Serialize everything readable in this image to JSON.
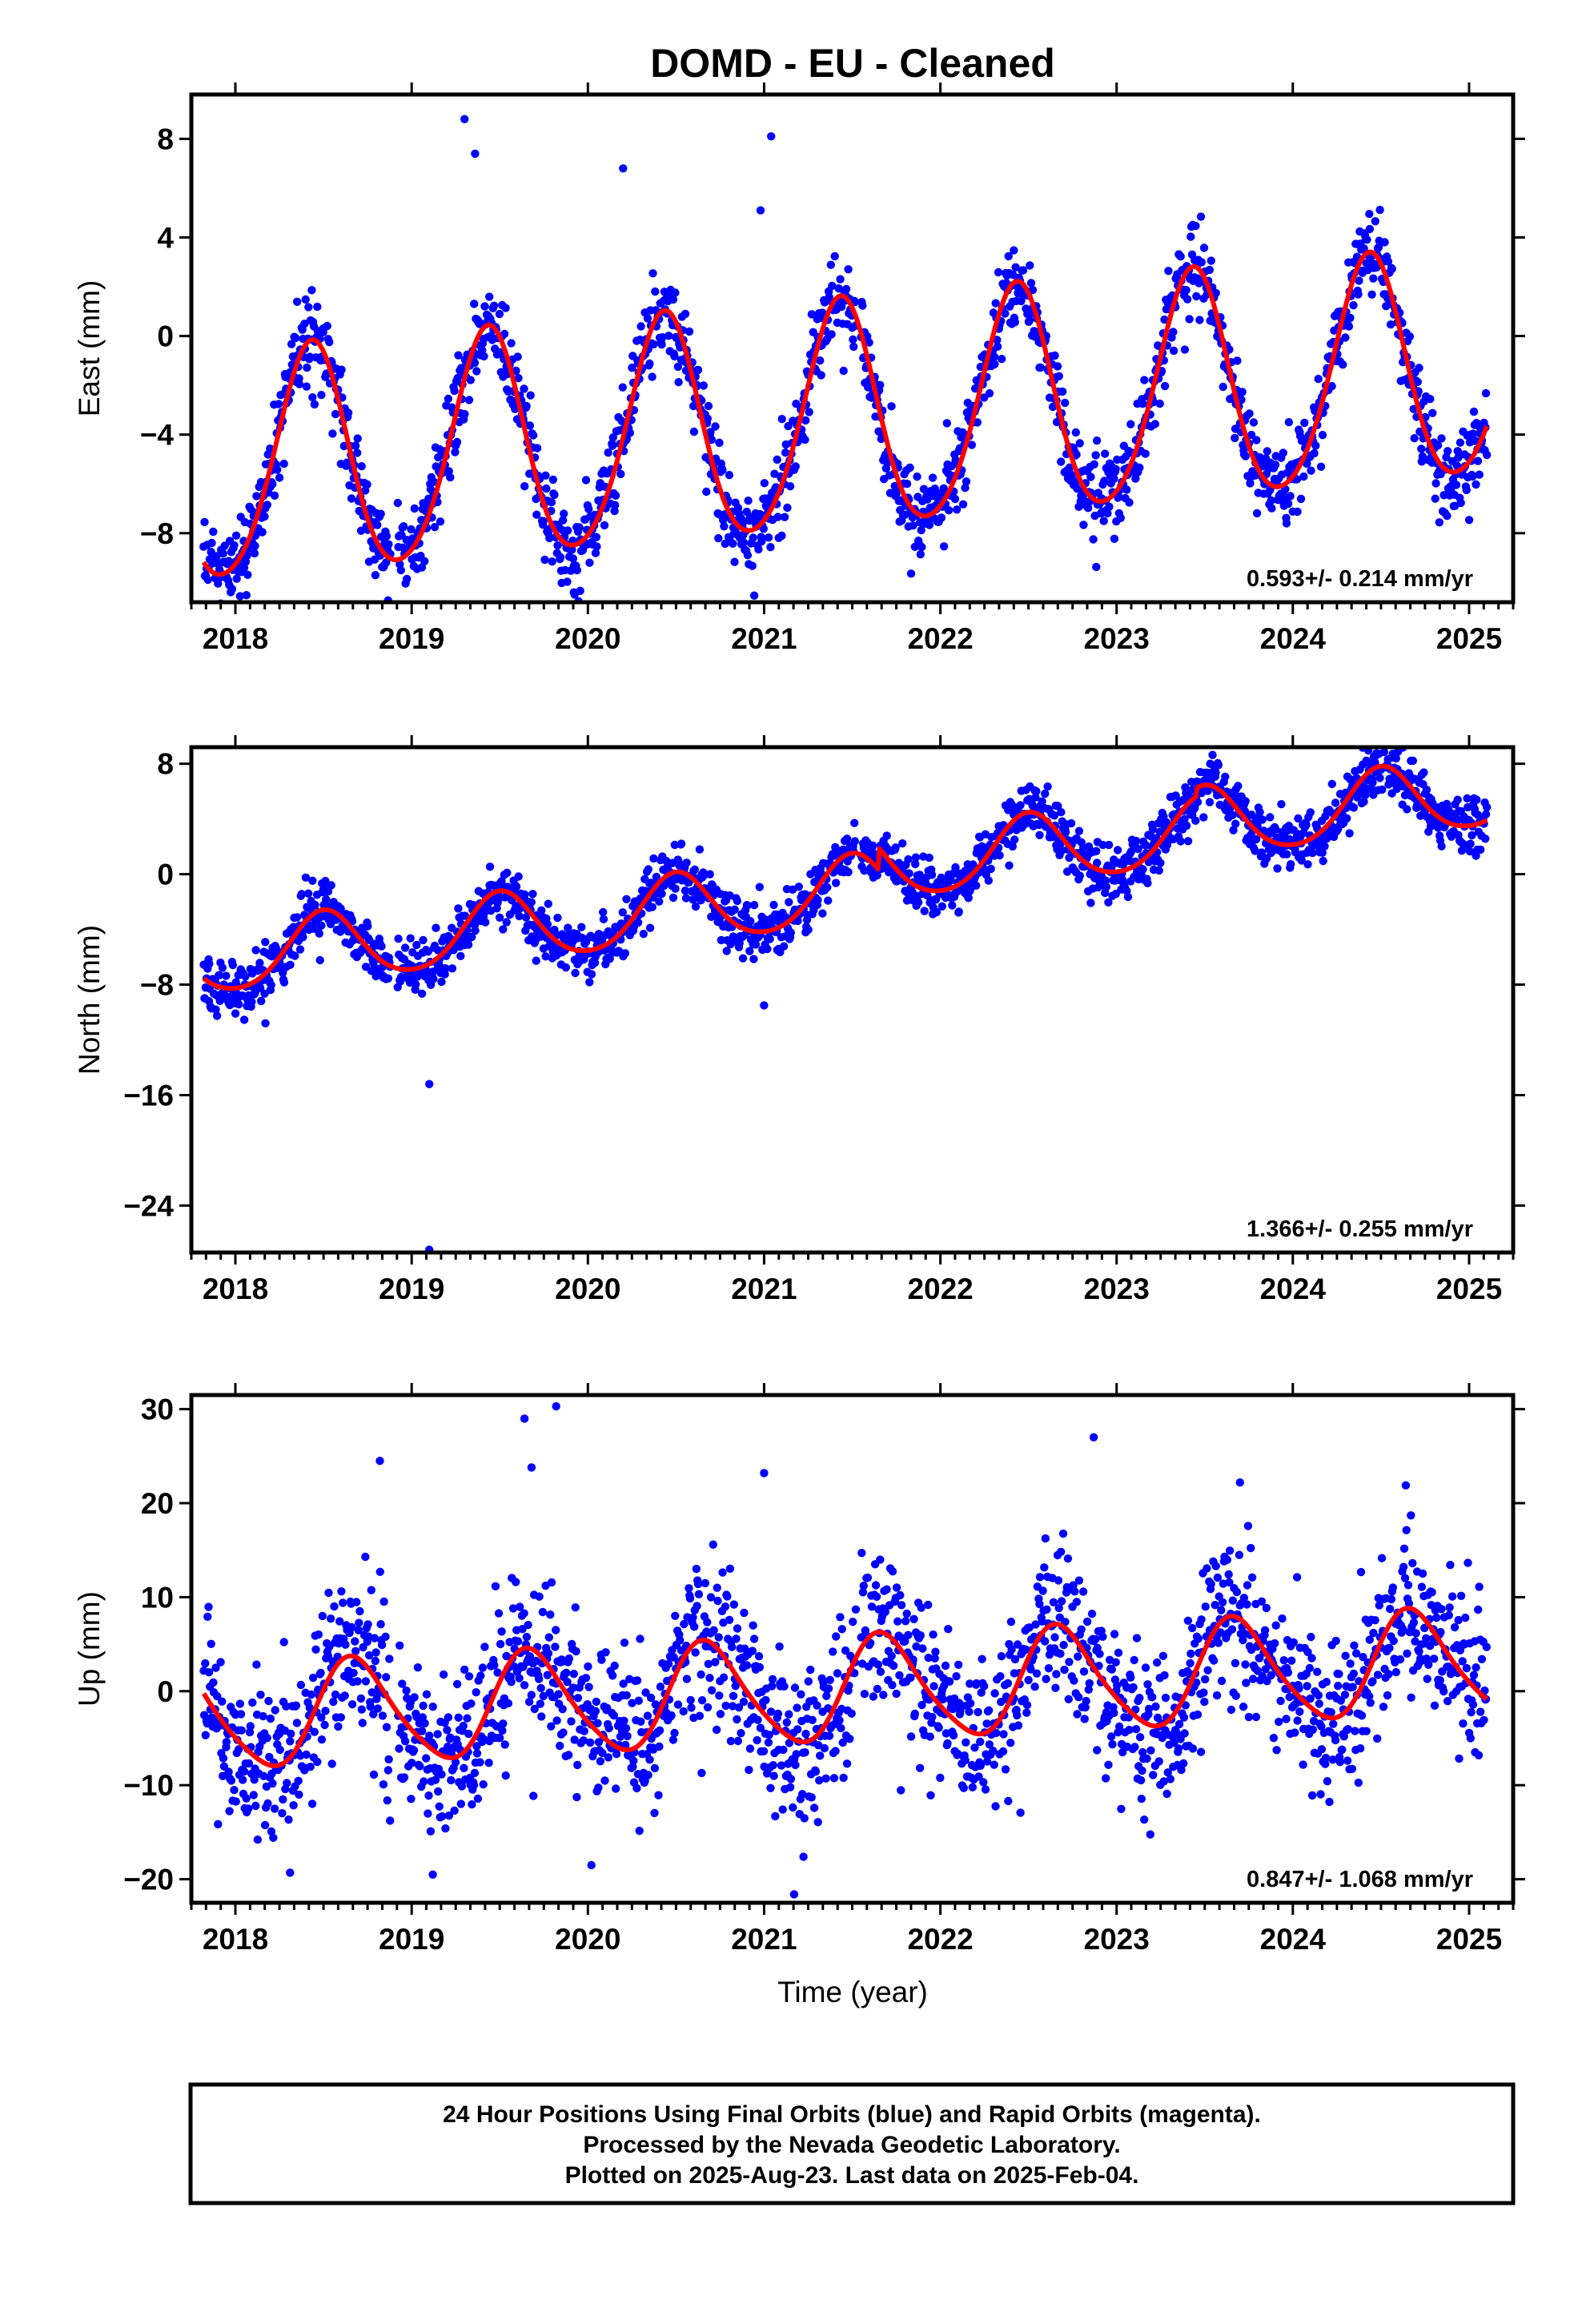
{
  "figure": {
    "title": "DOMD  - EU - Cleaned",
    "xlabel": "Time (year)"
  },
  "colors": {
    "final_orbits": "#0000ff",
    "model": "#ff0000",
    "frame": "#000000"
  },
  "chart_data": [
    {
      "type": "scatter",
      "ylabel": "East (mm)",
      "rate_text": "0.593+/- 0.214 mm/yr",
      "x_range": [
        2017.75,
        2025.25
      ],
      "y_range": [
        -10.8,
        9.8
      ],
      "x_ticks": [
        2018,
        2019,
        2020,
        2021,
        2022,
        2023,
        2024,
        2025
      ],
      "y_ticks": [
        8,
        4,
        0,
        -4,
        -8
      ],
      "y_tick_labels": [
        "8",
        "4",
        "0",
        "−4",
        "−8"
      ],
      "data_start": 2017.82,
      "data_end": 2025.1,
      "model": {
        "offset": -5.6,
        "trend": 0.593,
        "annual_amplitude": 4.6,
        "annual_peak": 2018.43,
        "semiannual_amplitude": 0.5,
        "semiannual_peak": 2018.45
      },
      "scatter_sigma": 0.9,
      "outliers": [
        [
          2018.05,
          -9.4
        ],
        [
          2019.3,
          8.8
        ],
        [
          2019.36,
          7.4
        ],
        [
          2019.92,
          -10.4
        ],
        [
          2020.2,
          6.8
        ],
        [
          2020.98,
          5.1
        ],
        [
          2021.04,
          8.1
        ],
        [
          2021.1,
          -8.1
        ],
        [
          2022.86,
          -6.6
        ],
        [
          2023.88,
          -6.1
        ],
        [
          2023.85,
          -5.6
        ]
      ]
    },
    {
      "type": "scatter",
      "ylabel": "North (mm)",
      "rate_text": "1.366+/- 0.255 mm/yr",
      "x_range": [
        2017.75,
        2025.25
      ],
      "y_range": [
        -27.4,
        9.2
      ],
      "x_ticks": [
        2018,
        2019,
        2020,
        2021,
        2022,
        2023,
        2024,
        2025
      ],
      "y_ticks": [
        8,
        0,
        -8,
        -16,
        -24
      ],
      "y_tick_labels": [
        "8",
        "0",
        "−8",
        "−16",
        "−24"
      ],
      "data_start": 2017.82,
      "data_end": 2025.1,
      "model": {
        "offset": -6.3,
        "trend": 1.366,
        "annual_amplitude": 2.5,
        "annual_peak": 2018.5,
        "semiannual_amplitude": 0.3,
        "semiannual_peak": 2018.5,
        "steps": [
          {
            "at": 2021.65,
            "size": 1.6
          },
          {
            "at": 2023.45,
            "size": 0.6
          }
        ]
      },
      "scatter_sigma": 1.0,
      "outliers": [
        [
          2019.1,
          -15.2
        ],
        [
          2019.1,
          -27.2
        ],
        [
          2017.85,
          -9.2
        ],
        [
          2018.17,
          -10.8
        ],
        [
          2021.0,
          -9.5
        ]
      ]
    },
    {
      "type": "scatter",
      "ylabel": "Up (mm)",
      "rate_text": "0.847+/- 1.068 mm/yr",
      "x_range": [
        2017.75,
        2025.25
      ],
      "y_range": [
        -22.5,
        31.5
      ],
      "x_ticks": [
        2018,
        2019,
        2020,
        2021,
        2022,
        2023,
        2024,
        2025
      ],
      "y_ticks": [
        30,
        20,
        10,
        0,
        -10,
        -20
      ],
      "y_tick_labels": [
        "30",
        "20",
        "10",
        "0",
        "−10",
        "−20"
      ],
      "data_start": 2017.82,
      "data_end": 2025.1,
      "model": {
        "offset": -3.0,
        "trend": 0.847,
        "annual_amplitude": 5.5,
        "annual_peak": 2018.68,
        "semiannual_amplitude": 0.8,
        "semiannual_peak": 2018.6
      },
      "scatter_sigma": 4.3,
      "outliers": [
        [
          2019.64,
          29.0
        ],
        [
          2019.82,
          30.3
        ],
        [
          2018.82,
          24.5
        ],
        [
          2019.68,
          23.8
        ],
        [
          2021.0,
          23.2
        ],
        [
          2022.87,
          27.0
        ],
        [
          2019.12,
          -19.5
        ],
        [
          2021.17,
          -21.6
        ],
        [
          2018.31,
          -19.3
        ],
        [
          2020.02,
          -18.5
        ],
        [
          2023.7,
          22.2
        ],
        [
          2024.67,
          18.7
        ]
      ]
    }
  ],
  "footer": {
    "line1": "24 Hour Positions Using Final Orbits (blue) and Rapid Orbits (magenta).",
    "line2": "Processed by the Nevada Geodetic Laboratory.",
    "line3": "Plotted on 2025-Aug-23. Last data on 2025-Feb-04."
  }
}
